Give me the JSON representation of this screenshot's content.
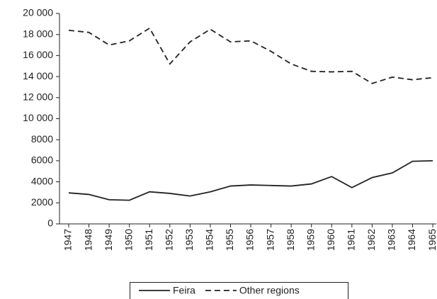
{
  "chart_data": {
    "type": "line",
    "categories": [
      "1947",
      "1948",
      "1949",
      "1950",
      "1951",
      "1952",
      "1953",
      "1954",
      "1955",
      "1956",
      "1957",
      "1958",
      "1959",
      "1960",
      "1961",
      "1962",
      "1963",
      "1964",
      "1965"
    ],
    "series": [
      {
        "name": "Feira",
        "color": "#222222",
        "dash": "solid",
        "values": [
          2950,
          2800,
          2300,
          2250,
          3050,
          2900,
          2650,
          3050,
          3600,
          3700,
          3650,
          3600,
          3800,
          4500,
          3450,
          4400,
          4850,
          5950,
          6000
        ]
      },
      {
        "name": "Other regions",
        "color": "#222222",
        "dash": "dashed",
        "values": [
          18400,
          18200,
          17000,
          17400,
          18600,
          15200,
          17300,
          18500,
          17300,
          17400,
          16400,
          15200,
          14500,
          14450,
          14500,
          13350,
          13950,
          13700,
          13900
        ]
      }
    ],
    "ylim": [
      0,
      20000
    ],
    "yticks": [
      0,
      {
        "value": 2000,
        "label": "2000"
      },
      {
        "value": 4000,
        "label": "4000"
      },
      {
        "value": 6000,
        "label": "6000"
      },
      {
        "value": 8000,
        "label": "8000"
      },
      {
        "value": 10000,
        "label": "10 000"
      },
      {
        "value": 12000,
        "label": "12 000"
      },
      {
        "value": 14000,
        "label": "14 000"
      },
      {
        "value": 16000,
        "label": "16 000"
      },
      {
        "value": 18000,
        "label": "18 000"
      },
      {
        "value": 20000,
        "label": "20 000"
      }
    ],
    "grid": false,
    "legend": "bottom"
  }
}
